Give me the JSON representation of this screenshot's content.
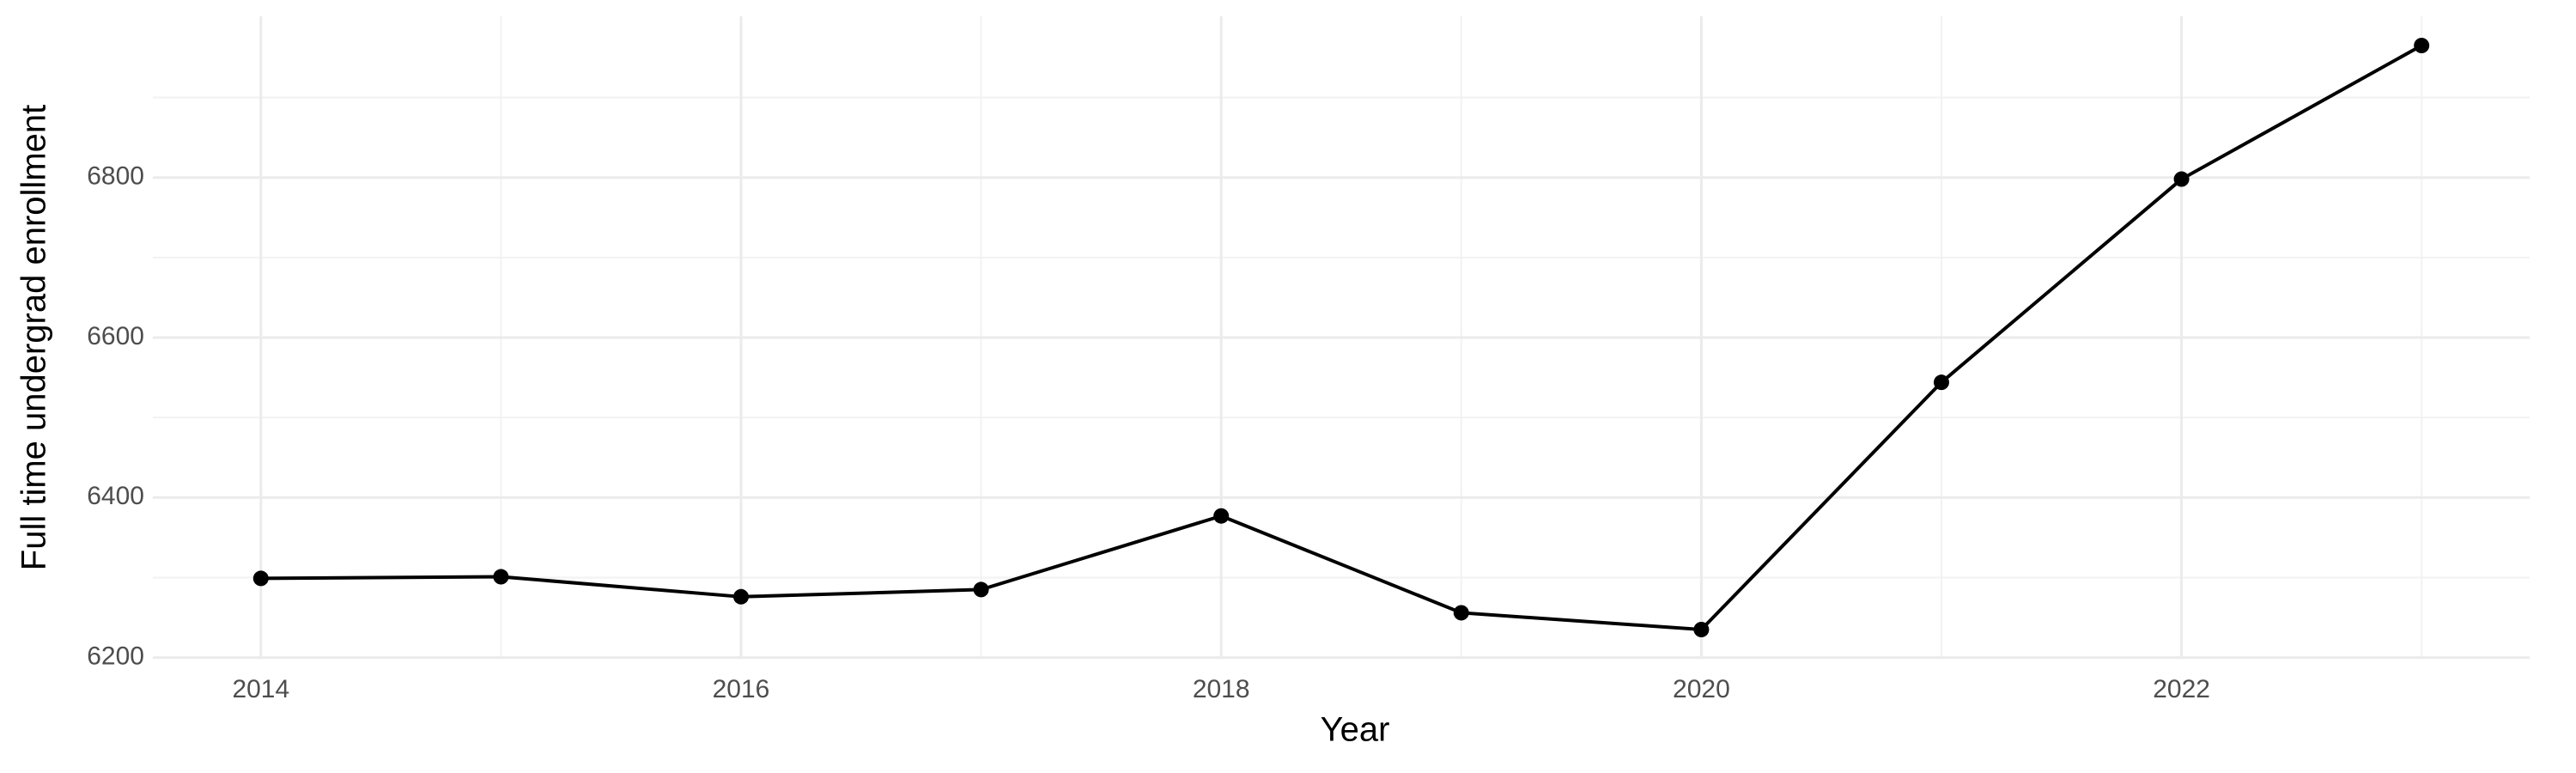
{
  "chart_data": {
    "type": "line",
    "x_label": "Year",
    "y_label": "Full time undergrad enrollment",
    "x": [
      2014,
      2015,
      2016,
      2017,
      2018,
      2019,
      2020,
      2021,
      2022,
      2023
    ],
    "values": [
      6299,
      6301,
      6276,
      6285,
      6377,
      6256,
      6235,
      6544,
      6798,
      6965
    ],
    "color": "#000000",
    "xlim": [
      2013.55,
      2023.45
    ],
    "xticks": [
      2014,
      2016,
      2018,
      2020,
      2022
    ],
    "xminor_ticks": [
      2015,
      2017,
      2019,
      2021,
      2023
    ],
    "ylim": [
      6198.5,
      7001.5
    ],
    "yticks": [
      6200,
      6400,
      6600,
      6800
    ],
    "yminor_ticks": [
      6300,
      6500,
      6700,
      6900
    ],
    "grid": true
  }
}
